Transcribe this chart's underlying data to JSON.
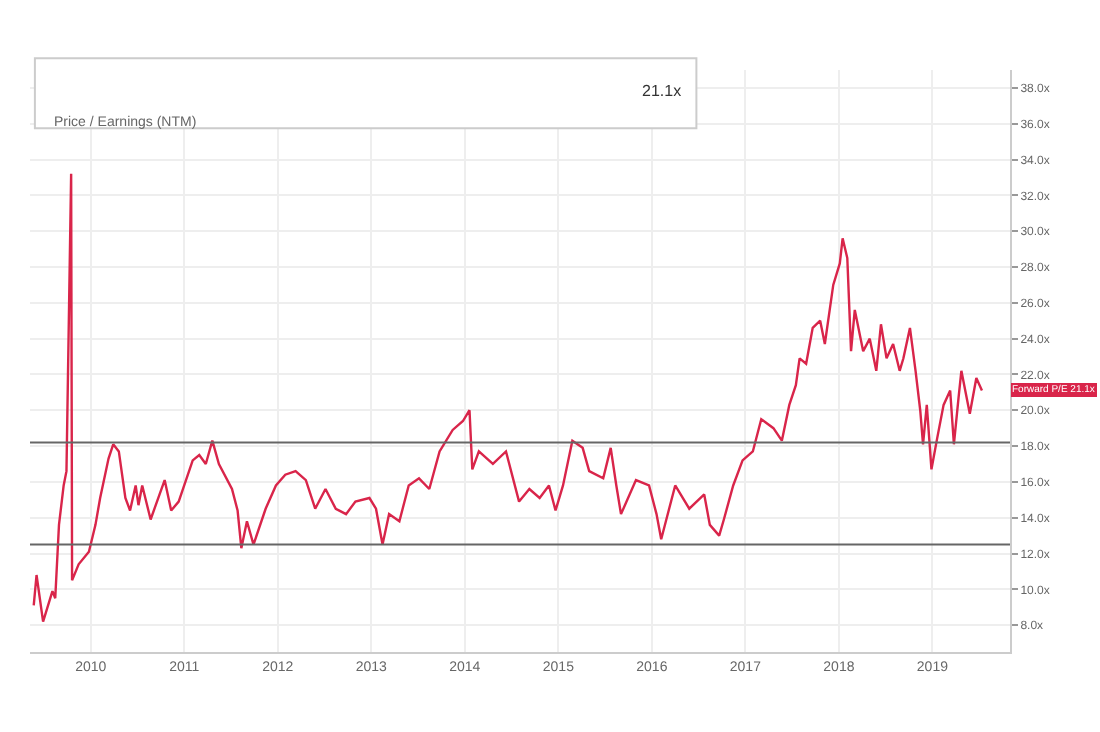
{
  "chart_data": {
    "type": "line",
    "color": "#d9254a",
    "x": [
      2009.39,
      2009.42,
      2009.49,
      2009.59,
      2009.62,
      2009.66,
      2009.71,
      2009.74,
      2009.79,
      2009.8,
      2009.87,
      2009.98,
      2010.05,
      2010.1,
      2010.19,
      2010.24,
      2010.3,
      2010.37,
      2010.42,
      2010.48,
      2010.51,
      2010.55,
      2010.64,
      2010.79,
      2010.86,
      2010.94,
      2011.09,
      2011.16,
      2011.23,
      2011.3,
      2011.37,
      2011.51,
      2011.57,
      2011.61,
      2011.67,
      2011.74,
      2011.87,
      2011.98,
      2012.08,
      2012.19,
      2012.3,
      2012.4,
      2012.51,
      2012.62,
      2012.73,
      2012.83,
      2012.98,
      2013.05,
      2013.12,
      2013.19,
      2013.3,
      2013.4,
      2013.51,
      2013.62,
      2013.73,
      2013.87,
      2013.98,
      2014.05,
      2014.08,
      2014.15,
      2014.3,
      2014.44,
      2014.58,
      2014.69,
      2014.8,
      2014.9,
      2014.97,
      2015.05,
      2015.15,
      2015.26,
      2015.33,
      2015.48,
      2015.56,
      2015.62,
      2015.67,
      2015.83,
      2015.97,
      2016.05,
      2016.1,
      2016.15,
      2016.25,
      2016.4,
      2016.56,
      2016.62,
      2016.72,
      2016.77,
      2016.87,
      2016.97,
      2017.08,
      2017.17,
      2017.3,
      2017.39,
      2017.47,
      2017.54,
      2017.58,
      2017.65,
      2017.72,
      2017.8,
      2017.85,
      2017.94,
      2018.01,
      2018.04,
      2018.09,
      2018.13,
      2018.17,
      2018.26,
      2018.33,
      2018.4,
      2018.45,
      2018.51,
      2018.58,
      2018.65,
      2018.69,
      2018.76,
      2018.82,
      2018.87,
      2018.9,
      2018.94,
      2018.99,
      2019.05,
      2019.12,
      2019.19,
      2019.23,
      2019.28,
      2019.31,
      2019.4,
      2019.47,
      2019.53
    ],
    "values": [
      9.1,
      10.8,
      8.2,
      9.9,
      9.5,
      13.6,
      15.8,
      16.6,
      33.2,
      10.5,
      11.4,
      12.1,
      13.6,
      15.1,
      17.3,
      18.1,
      17.7,
      15.1,
      14.4,
      15.8,
      14.7,
      15.8,
      13.9,
      16.1,
      14.4,
      14.9,
      17.2,
      17.5,
      17.0,
      18.3,
      17.0,
      15.6,
      14.4,
      12.3,
      13.8,
      12.5,
      14.5,
      15.8,
      16.4,
      16.6,
      16.1,
      14.5,
      15.6,
      14.5,
      14.2,
      14.9,
      15.1,
      14.5,
      12.5,
      14.2,
      13.8,
      15.8,
      16.2,
      15.6,
      17.7,
      18.9,
      19.4,
      20.0,
      16.7,
      17.7,
      17.0,
      17.7,
      14.9,
      15.6,
      15.1,
      15.8,
      14.4,
      15.8,
      18.3,
      17.9,
      16.6,
      16.2,
      17.9,
      15.8,
      14.2,
      16.1,
      15.8,
      14.2,
      12.8,
      13.8,
      15.8,
      14.5,
      15.3,
      13.6,
      13.0,
      13.9,
      15.8,
      17.2,
      17.7,
      19.5,
      19.0,
      18.3,
      20.3,
      21.4,
      22.9,
      22.6,
      24.6,
      25.0,
      23.7,
      27.0,
      28.2,
      29.6,
      28.5,
      23.3,
      25.6,
      23.3,
      24.0,
      22.2,
      24.8,
      22.9,
      23.7,
      22.2,
      22.9,
      24.6,
      22.2,
      20.0,
      18.1,
      20.3,
      16.7,
      18.4,
      20.3,
      21.1,
      18.1,
      20.7,
      22.2,
      19.8,
      21.8,
      21.1
    ],
    "xlim": [
      2009.35,
      2019.83
    ],
    "xticks": [
      2010,
      2011,
      2012,
      2013,
      2014,
      2015,
      2016,
      2017,
      2018,
      2019
    ],
    "ylim": [
      6.5,
      39
    ],
    "yticks": [
      {
        "value": 8,
        "label": "8.0x"
      },
      {
        "value": 10,
        "label": "10.0x"
      },
      {
        "value": 12,
        "label": "12.0x"
      },
      {
        "value": 14,
        "label": "14.0x"
      },
      {
        "value": 16,
        "label": "16.0x"
      },
      {
        "value": 18,
        "label": "18.0x"
      },
      {
        "value": 20,
        "label": "20.0x"
      },
      {
        "value": 22,
        "label": "22.0x"
      },
      {
        "value": 24,
        "label": "24.0x"
      },
      {
        "value": 26,
        "label": "26.0x"
      },
      {
        "value": 28,
        "label": "28.0x"
      },
      {
        "value": 30,
        "label": "30.0x"
      },
      {
        "value": 32,
        "label": "32.0x"
      },
      {
        "value": 34,
        "label": "34.0x"
      },
      {
        "value": 36,
        "label": "36.0x"
      },
      {
        "value": 38,
        "label": "38.0x"
      }
    ],
    "ref_lines": [
      {
        "axis": "y",
        "value": 18.2,
        "color": "#666666"
      },
      {
        "axis": "y",
        "value": 12.5,
        "color": "#666666"
      }
    ],
    "annotations": [
      "Price / Earnings (NTM)",
      "21.1x",
      "Forward P/E\n21.1x"
    ],
    "grid": true,
    "marker": "none",
    "line_style": "solid"
  }
}
